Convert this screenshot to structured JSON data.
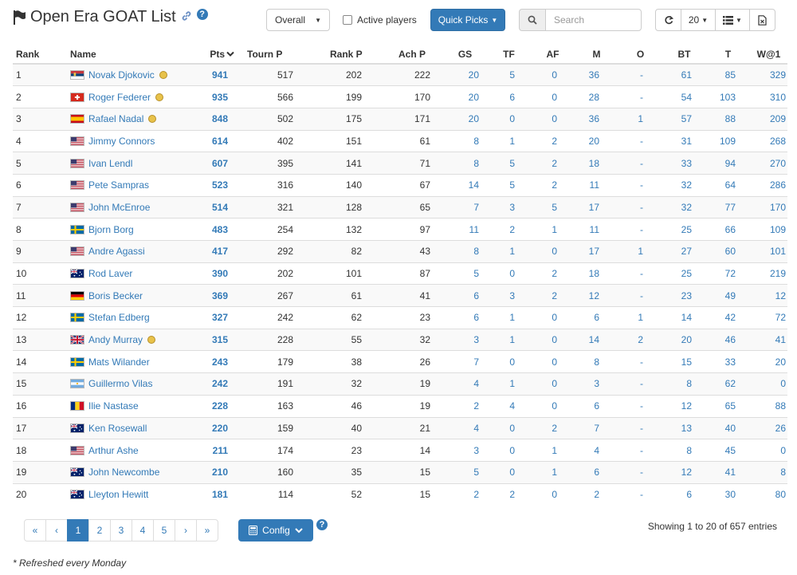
{
  "header": {
    "title": "Open Era GOAT List",
    "help": "?",
    "surface_select": "Overall",
    "active_players_label": "Active players",
    "quick_picks_label": "Quick Picks",
    "search_placeholder": "Search",
    "page_size": "20"
  },
  "columns": [
    "Rank",
    "Name",
    "Pts",
    "Tourn P",
    "Rank P",
    "Ach P",
    "GS",
    "TF",
    "AF",
    "M",
    "O",
    "BT",
    "T",
    "W@1"
  ],
  "rows": [
    {
      "rank": "1",
      "name": "Novak Djokovic",
      "country": "SRB",
      "active": true,
      "pts": "941",
      "tourn": "517",
      "rankp": "202",
      "ach": "222",
      "gs": "20",
      "tf": "5",
      "af": "0",
      "m": "36",
      "o": "-",
      "bt": "61",
      "t": "85",
      "w1": "329"
    },
    {
      "rank": "2",
      "name": "Roger Federer",
      "country": "SUI",
      "active": true,
      "pts": "935",
      "tourn": "566",
      "rankp": "199",
      "ach": "170",
      "gs": "20",
      "tf": "6",
      "af": "0",
      "m": "28",
      "o": "-",
      "bt": "54",
      "t": "103",
      "w1": "310"
    },
    {
      "rank": "3",
      "name": "Rafael Nadal",
      "country": "ESP",
      "active": true,
      "pts": "848",
      "tourn": "502",
      "rankp": "175",
      "ach": "171",
      "gs": "20",
      "tf": "0",
      "af": "0",
      "m": "36",
      "o": "1",
      "bt": "57",
      "t": "88",
      "w1": "209"
    },
    {
      "rank": "4",
      "name": "Jimmy Connors",
      "country": "USA",
      "active": false,
      "pts": "614",
      "tourn": "402",
      "rankp": "151",
      "ach": "61",
      "gs": "8",
      "tf": "1",
      "af": "2",
      "m": "20",
      "o": "-",
      "bt": "31",
      "t": "109",
      "w1": "268"
    },
    {
      "rank": "5",
      "name": "Ivan Lendl",
      "country": "USA",
      "active": false,
      "pts": "607",
      "tourn": "395",
      "rankp": "141",
      "ach": "71",
      "gs": "8",
      "tf": "5",
      "af": "2",
      "m": "18",
      "o": "-",
      "bt": "33",
      "t": "94",
      "w1": "270"
    },
    {
      "rank": "6",
      "name": "Pete Sampras",
      "country": "USA",
      "active": false,
      "pts": "523",
      "tourn": "316",
      "rankp": "140",
      "ach": "67",
      "gs": "14",
      "tf": "5",
      "af": "2",
      "m": "11",
      "o": "-",
      "bt": "32",
      "t": "64",
      "w1": "286"
    },
    {
      "rank": "7",
      "name": "John McEnroe",
      "country": "USA",
      "active": false,
      "pts": "514",
      "tourn": "321",
      "rankp": "128",
      "ach": "65",
      "gs": "7",
      "tf": "3",
      "af": "5",
      "m": "17",
      "o": "-",
      "bt": "32",
      "t": "77",
      "w1": "170"
    },
    {
      "rank": "8",
      "name": "Bjorn Borg",
      "country": "SWE",
      "active": false,
      "pts": "483",
      "tourn": "254",
      "rankp": "132",
      "ach": "97",
      "gs": "11",
      "tf": "2",
      "af": "1",
      "m": "11",
      "o": "-",
      "bt": "25",
      "t": "66",
      "w1": "109"
    },
    {
      "rank": "9",
      "name": "Andre Agassi",
      "country": "USA",
      "active": false,
      "pts": "417",
      "tourn": "292",
      "rankp": "82",
      "ach": "43",
      "gs": "8",
      "tf": "1",
      "af": "0",
      "m": "17",
      "o": "1",
      "bt": "27",
      "t": "60",
      "w1": "101"
    },
    {
      "rank": "10",
      "name": "Rod Laver",
      "country": "AUS",
      "active": false,
      "pts": "390",
      "tourn": "202",
      "rankp": "101",
      "ach": "87",
      "gs": "5",
      "tf": "0",
      "af": "2",
      "m": "18",
      "o": "-",
      "bt": "25",
      "t": "72",
      "w1": "219"
    },
    {
      "rank": "11",
      "name": "Boris Becker",
      "country": "GER",
      "active": false,
      "pts": "369",
      "tourn": "267",
      "rankp": "61",
      "ach": "41",
      "gs": "6",
      "tf": "3",
      "af": "2",
      "m": "12",
      "o": "-",
      "bt": "23",
      "t": "49",
      "w1": "12"
    },
    {
      "rank": "12",
      "name": "Stefan Edberg",
      "country": "SWE",
      "active": false,
      "pts": "327",
      "tourn": "242",
      "rankp": "62",
      "ach": "23",
      "gs": "6",
      "tf": "1",
      "af": "0",
      "m": "6",
      "o": "1",
      "bt": "14",
      "t": "42",
      "w1": "72"
    },
    {
      "rank": "13",
      "name": "Andy Murray",
      "country": "GBR",
      "active": true,
      "pts": "315",
      "tourn": "228",
      "rankp": "55",
      "ach": "32",
      "gs": "3",
      "tf": "1",
      "af": "0",
      "m": "14",
      "o": "2",
      "bt": "20",
      "t": "46",
      "w1": "41"
    },
    {
      "rank": "14",
      "name": "Mats Wilander",
      "country": "SWE",
      "active": false,
      "pts": "243",
      "tourn": "179",
      "rankp": "38",
      "ach": "26",
      "gs": "7",
      "tf": "0",
      "af": "0",
      "m": "8",
      "o": "-",
      "bt": "15",
      "t": "33",
      "w1": "20"
    },
    {
      "rank": "15",
      "name": "Guillermo Vilas",
      "country": "ARG",
      "active": false,
      "pts": "242",
      "tourn": "191",
      "rankp": "32",
      "ach": "19",
      "gs": "4",
      "tf": "1",
      "af": "0",
      "m": "3",
      "o": "-",
      "bt": "8",
      "t": "62",
      "w1": "0"
    },
    {
      "rank": "16",
      "name": "Ilie Nastase",
      "country": "ROU",
      "active": false,
      "pts": "228",
      "tourn": "163",
      "rankp": "46",
      "ach": "19",
      "gs": "2",
      "tf": "4",
      "af": "0",
      "m": "6",
      "o": "-",
      "bt": "12",
      "t": "65",
      "w1": "88"
    },
    {
      "rank": "17",
      "name": "Ken Rosewall",
      "country": "AUS",
      "active": false,
      "pts": "220",
      "tourn": "159",
      "rankp": "40",
      "ach": "21",
      "gs": "4",
      "tf": "0",
      "af": "2",
      "m": "7",
      "o": "-",
      "bt": "13",
      "t": "40",
      "w1": "26"
    },
    {
      "rank": "18",
      "name": "Arthur Ashe",
      "country": "USA",
      "active": false,
      "pts": "211",
      "tourn": "174",
      "rankp": "23",
      "ach": "14",
      "gs": "3",
      "tf": "0",
      "af": "1",
      "m": "4",
      "o": "-",
      "bt": "8",
      "t": "45",
      "w1": "0"
    },
    {
      "rank": "19",
      "name": "John Newcombe",
      "country": "AUS",
      "active": false,
      "pts": "210",
      "tourn": "160",
      "rankp": "35",
      "ach": "15",
      "gs": "5",
      "tf": "0",
      "af": "1",
      "m": "6",
      "o": "-",
      "bt": "12",
      "t": "41",
      "w1": "8"
    },
    {
      "rank": "20",
      "name": "Lleyton Hewitt",
      "country": "AUS",
      "active": false,
      "pts": "181",
      "tourn": "114",
      "rankp": "52",
      "ach": "15",
      "gs": "2",
      "tf": "2",
      "af": "0",
      "m": "2",
      "o": "-",
      "bt": "6",
      "t": "30",
      "w1": "80"
    }
  ],
  "pagination": {
    "first": "«",
    "prev": "‹",
    "pages": [
      "1",
      "2",
      "3",
      "4",
      "5"
    ],
    "active_page": "1",
    "next": "›",
    "last": "»"
  },
  "footer": {
    "config_label": "Config",
    "info": "Showing 1 to 20 of 657 entries",
    "note": "* Refreshed every Monday"
  },
  "colors": {
    "primary": "#337ab7",
    "border": "#dddddd",
    "stripe": "#f9f9f9"
  }
}
